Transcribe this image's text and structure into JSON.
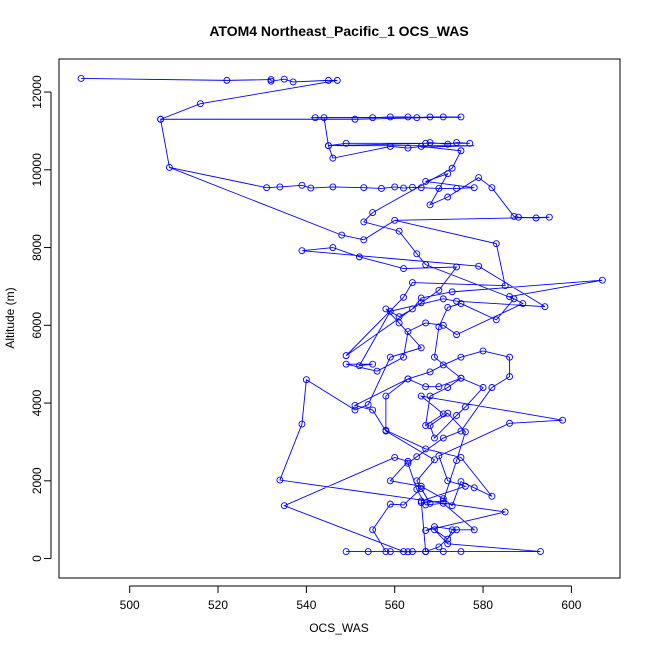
{
  "chart_data": {
    "type": "line",
    "title": "ATOM4 Northeast_Pacific_1 OCS_WAS",
    "xlabel": "OCS_WAS",
    "ylabel": "Altitude (m)",
    "xlim": [
      484,
      611
    ],
    "ylim": [
      -500,
      12850
    ],
    "xticks": [
      500,
      520,
      540,
      560,
      580,
      600
    ],
    "yticks": [
      0,
      2000,
      4000,
      6000,
      8000,
      10000,
      12000
    ],
    "grid": false,
    "series": [
      {
        "color": "#0000ff",
        "marker": "open-circle",
        "points": [
          [
            549,
            180
          ],
          [
            554,
            180
          ],
          [
            559,
            180
          ],
          [
            563,
            175
          ],
          [
            567,
            180
          ],
          [
            571,
            180
          ],
          [
            575,
            180
          ],
          [
            593,
            180
          ],
          [
            572,
            380
          ],
          [
            569,
            740
          ],
          [
            572,
            500
          ],
          [
            573,
            740
          ],
          [
            578,
            740
          ],
          [
            571,
            1420
          ],
          [
            567,
            1380
          ],
          [
            565,
            1780
          ],
          [
            563,
            2450
          ],
          [
            565,
            2620
          ],
          [
            571,
            3100
          ],
          [
            575,
            3280
          ],
          [
            582,
            4400
          ],
          [
            586,
            4680
          ],
          [
            586,
            5180
          ],
          [
            580,
            5340
          ],
          [
            575,
            5180
          ],
          [
            571,
            4980
          ],
          [
            568,
            4800
          ],
          [
            563,
            4620
          ],
          [
            551,
            3940
          ],
          [
            555,
            3820
          ],
          [
            558,
            3280
          ],
          [
            569,
            2540
          ],
          [
            565,
            2000
          ],
          [
            568,
            1420
          ],
          [
            566,
            1800
          ],
          [
            562,
            1380
          ],
          [
            559,
            1400
          ],
          [
            555,
            740
          ],
          [
            558,
            180
          ],
          [
            567,
            180
          ],
          [
            566,
            1480
          ],
          [
            576,
            1860
          ],
          [
            572,
            2000
          ],
          [
            570,
            2640
          ],
          [
            586,
            3480
          ],
          [
            598,
            3560
          ],
          [
            566,
            4180
          ],
          [
            571,
            3720
          ],
          [
            567,
            3420
          ],
          [
            568,
            4180
          ],
          [
            572,
            4400
          ],
          [
            575,
            4640
          ],
          [
            569,
            5180
          ],
          [
            570,
            5960
          ],
          [
            572,
            6460
          ],
          [
            575,
            6560
          ],
          [
            583,
            6140
          ],
          [
            587,
            6680
          ],
          [
            567,
            7560
          ],
          [
            565,
            7840
          ],
          [
            561,
            8420
          ],
          [
            553,
            8660
          ],
          [
            555,
            8900
          ],
          [
            573,
            10040
          ],
          [
            575,
            10490
          ],
          [
            566,
            10600
          ],
          [
            563,
            10560
          ],
          [
            559,
            10600
          ],
          [
            546,
            10300
          ],
          [
            545,
            10620
          ],
          [
            567,
            10680
          ],
          [
            568,
            10700
          ],
          [
            572,
            10660
          ],
          [
            574,
            10700
          ],
          [
            577,
            10680
          ],
          [
            549,
            10680
          ],
          [
            545,
            10620
          ],
          [
            544,
            11340
          ],
          [
            542,
            11340
          ],
          [
            555,
            11340
          ],
          [
            559,
            11360
          ],
          [
            563,
            11360
          ],
          [
            565,
            11340
          ],
          [
            568,
            11360
          ],
          [
            571,
            11360
          ],
          [
            575,
            11360
          ],
          [
            551,
            11300
          ],
          [
            507,
            11300
          ],
          [
            509,
            10060
          ],
          [
            548,
            8320
          ],
          [
            553,
            8200
          ],
          [
            560,
            8700
          ],
          [
            583,
            8100
          ],
          [
            585,
            7020
          ],
          [
            564,
            7100
          ],
          [
            562,
            6720
          ],
          [
            549,
            5220
          ],
          [
            566,
            6580
          ],
          [
            570,
            6900
          ],
          [
            574,
            7500
          ],
          [
            562,
            7460
          ],
          [
            552,
            7760
          ],
          [
            546,
            8000
          ],
          [
            539,
            7920
          ],
          [
            579,
            7520
          ],
          [
            594,
            6480
          ],
          [
            574,
            6620
          ],
          [
            571,
            6680
          ],
          [
            559,
            6360
          ],
          [
            552,
            4960
          ],
          [
            555,
            5000
          ],
          [
            549,
            5000
          ],
          [
            556,
            4820
          ],
          [
            562,
            5180
          ],
          [
            563,
            5840
          ],
          [
            567,
            6060
          ],
          [
            571,
            6000
          ],
          [
            574,
            5760
          ],
          [
            589,
            6560
          ],
          [
            586,
            6740
          ],
          [
            607,
            7160
          ],
          [
            573,
            6860
          ],
          [
            566,
            6700
          ],
          [
            564,
            6420
          ],
          [
            561,
            6220
          ],
          [
            558,
            6420
          ],
          [
            561,
            6060
          ],
          [
            566,
            5420
          ],
          [
            559,
            5180
          ],
          [
            554,
            3960
          ],
          [
            551,
            3820
          ],
          [
            540,
            4600
          ],
          [
            539,
            3460
          ],
          [
            534,
            2020
          ],
          [
            585,
            1200
          ],
          [
            567,
            720
          ],
          [
            569,
            820
          ],
          [
            574,
            740
          ],
          [
            570,
            300
          ],
          [
            567,
            180
          ],
          [
            564,
            180
          ],
          [
            562,
            180
          ],
          [
            535,
            1360
          ],
          [
            560,
            2600
          ],
          [
            563,
            2500
          ],
          [
            559,
            2000
          ],
          [
            566,
            1860
          ],
          [
            571,
            1540
          ],
          [
            573,
            1360
          ],
          [
            575,
            1980
          ],
          [
            578,
            1820
          ],
          [
            582,
            1600
          ],
          [
            575,
            2600
          ],
          [
            567,
            2820
          ],
          [
            558,
            3300
          ],
          [
            558,
            4180
          ],
          [
            563,
            4620
          ],
          [
            567,
            4420
          ],
          [
            570,
            4420
          ],
          [
            575,
            4640
          ],
          [
            580,
            4400
          ],
          [
            576,
            3900
          ],
          [
            574,
            3680
          ],
          [
            569,
            3100
          ],
          [
            568,
            3420
          ],
          [
            572,
            3740
          ],
          [
            576,
            3260
          ],
          [
            574,
            2520
          ],
          [
            571,
            1480
          ],
          [
            566,
            1440
          ]
        ]
      }
    ],
    "top_cluster": [
      [
        489,
        12350
      ],
      [
        522,
        12300
      ],
      [
        532,
        12320
      ],
      [
        532,
        12280
      ],
      [
        535,
        12330
      ],
      [
        537,
        12260
      ],
      [
        545,
        12300
      ],
      [
        547,
        12300
      ],
      [
        516,
        11700
      ],
      [
        507,
        11300
      ]
    ],
    "mid_cluster": [
      [
        531,
        9540
      ],
      [
        534,
        9560
      ],
      [
        539,
        9600
      ],
      [
        541,
        9530
      ],
      [
        546,
        9560
      ],
      [
        553,
        9540
      ],
      [
        557,
        9520
      ],
      [
        560,
        9560
      ],
      [
        562,
        9530
      ],
      [
        564,
        9550
      ],
      [
        566,
        9540
      ],
      [
        570,
        9520
      ],
      [
        574,
        9520
      ],
      [
        578,
        9540
      ],
      [
        567,
        9700
      ],
      [
        572,
        9900
      ],
      [
        568,
        9100
      ],
      [
        572,
        9300
      ],
      [
        579,
        9800
      ],
      [
        582,
        9540
      ],
      [
        587,
        8800
      ],
      [
        588,
        8780
      ],
      [
        592,
        8760
      ],
      [
        595,
        8780
      ]
    ]
  }
}
